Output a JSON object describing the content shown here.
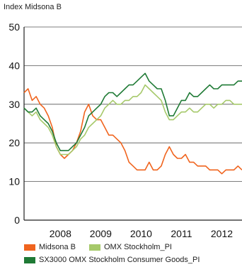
{
  "chart_data": {
    "type": "line",
    "ylabel": "Index Midsona B",
    "ylim": [
      0,
      50
    ],
    "yticks": [
      0,
      10,
      20,
      30,
      40,
      50
    ],
    "xlim": [
      2007.6,
      2013.0
    ],
    "xticks": [
      "2008",
      "2009",
      "2010",
      "2011",
      "2012"
    ],
    "grid": true,
    "legend": "bottom",
    "series": [
      {
        "name": "Midsona B",
        "color": "#f0641e",
        "x": [
          2007.6,
          2007.7,
          2007.8,
          2007.9,
          2008.0,
          2008.1,
          2008.2,
          2008.3,
          2008.4,
          2008.5,
          2008.6,
          2008.7,
          2008.8,
          2008.9,
          2009.0,
          2009.1,
          2009.2,
          2009.3,
          2009.4,
          2009.5,
          2009.6,
          2009.7,
          2009.8,
          2009.9,
          2010.0,
          2010.1,
          2010.2,
          2010.3,
          2010.4,
          2010.5,
          2010.6,
          2010.7,
          2010.8,
          2010.9,
          2011.0,
          2011.1,
          2011.2,
          2011.3,
          2011.4,
          2011.5,
          2011.6,
          2011.7,
          2011.8,
          2011.9,
          2012.0,
          2012.1,
          2012.2,
          2012.3,
          2012.4,
          2012.5,
          2012.6,
          2012.7,
          2012.8,
          2012.9,
          2013.0
        ],
        "values": [
          33,
          34,
          31,
          32,
          30,
          29,
          27,
          24,
          19,
          17,
          16,
          17,
          18,
          20,
          23,
          28,
          30,
          27,
          26,
          26,
          24,
          22,
          22,
          21,
          20,
          18,
          15,
          14,
          13,
          13,
          13,
          15,
          13,
          13,
          14,
          17,
          19,
          17,
          16,
          16,
          17,
          15,
          15,
          14,
          14,
          14,
          13,
          13,
          13,
          12,
          13,
          13,
          13,
          14,
          13
        ]
      },
      {
        "name": "OMX Stockholm_PI",
        "color": "#a6c96a",
        "x": [
          2007.6,
          2007.7,
          2007.8,
          2007.9,
          2008.0,
          2008.1,
          2008.2,
          2008.3,
          2008.4,
          2008.5,
          2008.6,
          2008.7,
          2008.8,
          2008.9,
          2009.0,
          2009.1,
          2009.2,
          2009.3,
          2009.4,
          2009.5,
          2009.6,
          2009.7,
          2009.8,
          2009.9,
          2010.0,
          2010.1,
          2010.2,
          2010.3,
          2010.4,
          2010.5,
          2010.6,
          2010.7,
          2010.8,
          2010.9,
          2011.0,
          2011.1,
          2011.2,
          2011.3,
          2011.4,
          2011.5,
          2011.6,
          2011.7,
          2011.8,
          2011.9,
          2012.0,
          2012.1,
          2012.2,
          2012.3,
          2012.4,
          2012.5,
          2012.6,
          2012.7,
          2012.8,
          2012.9,
          2013.0
        ],
        "values": [
          29,
          28,
          27,
          28,
          26,
          25,
          24,
          22,
          19,
          17,
          17,
          17,
          18,
          19,
          21,
          22,
          24,
          25,
          26,
          27,
          29,
          30,
          31,
          30,
          30,
          31,
          31,
          32,
          32,
          33,
          35,
          34,
          33,
          32,
          31,
          28,
          26,
          26,
          27,
          28,
          28,
          29,
          28,
          28,
          29,
          30,
          30,
          29,
          30,
          30,
          31,
          31,
          30,
          30,
          30
        ]
      },
      {
        "name": "SX3000 OMX Stockholm Consumer Goods_PI",
        "color": "#1f7a35",
        "x": [
          2007.6,
          2007.7,
          2007.8,
          2007.9,
          2008.0,
          2008.1,
          2008.2,
          2008.3,
          2008.4,
          2008.5,
          2008.6,
          2008.7,
          2008.8,
          2008.9,
          2009.0,
          2009.1,
          2009.2,
          2009.3,
          2009.4,
          2009.5,
          2009.6,
          2009.7,
          2009.8,
          2009.9,
          2010.0,
          2010.1,
          2010.2,
          2010.3,
          2010.4,
          2010.5,
          2010.6,
          2010.7,
          2010.8,
          2010.9,
          2011.0,
          2011.1,
          2011.2,
          2011.3,
          2011.4,
          2011.5,
          2011.6,
          2011.7,
          2011.8,
          2011.9,
          2012.0,
          2012.1,
          2012.2,
          2012.3,
          2012.4,
          2012.5,
          2012.6,
          2012.7,
          2012.8,
          2012.9,
          2013.0
        ],
        "values": [
          29,
          28,
          28,
          29,
          27,
          26,
          25,
          23,
          20,
          18,
          18,
          18,
          19,
          20,
          22,
          24,
          27,
          28,
          29,
          30,
          32,
          33,
          33,
          32,
          33,
          34,
          35,
          35,
          36,
          37,
          38,
          36,
          35,
          34,
          34,
          31,
          27,
          27,
          29,
          31,
          31,
          33,
          32,
          32,
          33,
          34,
          35,
          34,
          34,
          35,
          35,
          35,
          35,
          36,
          36
        ]
      }
    ]
  }
}
